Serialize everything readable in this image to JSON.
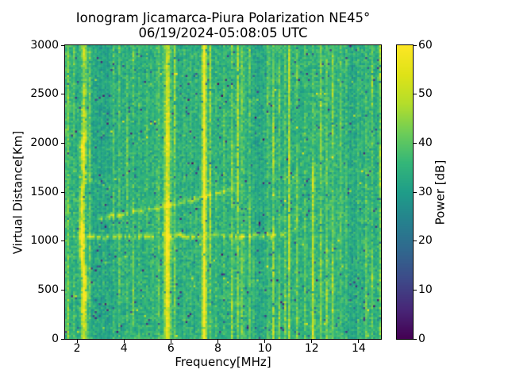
{
  "chart_data": {
    "type": "heatmap",
    "title": "Ionogram Jicamarca-Piura Polarization NE45°",
    "subtitle": "06/19/2024-05:08:05 UTC",
    "xlabel": "Frequency[MHz]",
    "ylabel": "Virtual Distance[Km]",
    "colorbar_label": "Power [dB]",
    "xlim": [
      1.49,
      14.95
    ],
    "ylim": [
      0,
      3000
    ],
    "clim": [
      0,
      60
    ],
    "xticks": [
      2,
      4,
      6,
      8,
      10,
      12,
      14
    ],
    "yticks": [
      0,
      500,
      1000,
      1500,
      2000,
      2500,
      3000
    ],
    "cticks": [
      0,
      10,
      20,
      30,
      40,
      50,
      60
    ],
    "colormap": "viridis",
    "colormap_stops": [
      [
        0.0,
        "#440154"
      ],
      [
        0.1,
        "#482878"
      ],
      [
        0.2,
        "#3e4a89"
      ],
      [
        0.3,
        "#31688e"
      ],
      [
        0.4,
        "#26828e"
      ],
      [
        0.5,
        "#1f9e89"
      ],
      [
        0.6,
        "#35b779"
      ],
      [
        0.7,
        "#6dcd59"
      ],
      [
        0.8,
        "#b4de2c"
      ],
      [
        0.9,
        "#dfe318"
      ],
      [
        1.0,
        "#fde725"
      ]
    ],
    "resolution": {
      "cols": 160,
      "rows": 148
    },
    "background_db": 34,
    "noise": {
      "spread_db": 7,
      "dark_speckle_prob": 0.018,
      "bright_speckle_prob": 0.003,
      "seed": 20240619
    },
    "background_shading": [
      {
        "f": 1.55,
        "w": 0.15,
        "db": 3
      },
      {
        "f": 3.05,
        "w": 0.5,
        "db": -2.5
      },
      {
        "f": 8.9,
        "w": 0.5,
        "db": 1.5
      },
      {
        "f": 9.65,
        "w": 0.3,
        "db": -2
      },
      {
        "f": 12.7,
        "w": 0.8,
        "db": 1.5
      },
      {
        "f": 13.65,
        "w": 0.25,
        "db": -2
      }
    ],
    "rfi_bands": [
      {
        "f": 1.62,
        "w": 0.05,
        "db": 6,
        "patchy": 0.6
      },
      {
        "f": 1.88,
        "w": 0.04,
        "db": 5,
        "patchy": 0.6
      },
      {
        "f": 2.27,
        "w": 0.11,
        "db": 21,
        "patchy": 0.7,
        "wobble": 0.12
      },
      {
        "f": 2.52,
        "w": 0.04,
        "db": 7,
        "patchy": 0.7
      },
      {
        "f": 3.1,
        "w": 0.03,
        "db": 4,
        "patchy": 0.6
      },
      {
        "f": 3.55,
        "w": 0.03,
        "db": 4,
        "patchy": 0.6
      },
      {
        "f": 3.8,
        "w": 0.03,
        "db": 5,
        "patchy": 0.6
      },
      {
        "f": 4.15,
        "w": 0.03,
        "db": 5,
        "patchy": 0.6
      },
      {
        "f": 4.4,
        "w": 0.03,
        "db": 6,
        "patchy": 0.6
      },
      {
        "f": 4.65,
        "w": 0.03,
        "db": 5,
        "patchy": 0.6
      },
      {
        "f": 4.95,
        "w": 0.04,
        "db": 7,
        "patchy": 0.5
      },
      {
        "f": 5.2,
        "w": 0.03,
        "db": 6,
        "patchy": 0.5
      },
      {
        "f": 5.45,
        "w": 0.04,
        "db": 9,
        "patchy": 0.5
      },
      {
        "f": 5.85,
        "w": 0.13,
        "db": 23,
        "patchy": 0.25
      },
      {
        "f": 6.15,
        "w": 0.04,
        "db": 10,
        "patchy": 0.4
      },
      {
        "f": 6.55,
        "w": 0.03,
        "db": 5,
        "patchy": 0.5
      },
      {
        "f": 6.85,
        "w": 0.03,
        "db": 6,
        "patchy": 0.5
      },
      {
        "f": 7.05,
        "w": 0.03,
        "db": 7,
        "patchy": 0.5
      },
      {
        "f": 7.42,
        "w": 0.09,
        "db": 26,
        "patchy": 0.08
      },
      {
        "f": 7.68,
        "w": 0.04,
        "db": 10,
        "patchy": 0.4
      },
      {
        "f": 7.95,
        "w": 0.03,
        "db": 6,
        "patchy": 0.5
      },
      {
        "f": 8.25,
        "w": 0.03,
        "db": 6,
        "patchy": 0.5
      },
      {
        "f": 8.6,
        "w": 0.04,
        "db": 8,
        "patchy": 0.6
      },
      {
        "f": 8.85,
        "w": 0.04,
        "db": 9,
        "patchy": 0.6
      },
      {
        "f": 9.05,
        "w": 0.04,
        "db": 9,
        "patchy": 0.6
      },
      {
        "f": 9.35,
        "w": 0.03,
        "db": 7,
        "patchy": 0.6
      },
      {
        "f": 9.5,
        "w": 0.03,
        "db": 6,
        "patchy": 0.6
      },
      {
        "f": 10.15,
        "w": 0.04,
        "db": 9,
        "patchy": 0.6
      },
      {
        "f": 10.35,
        "w": 0.05,
        "db": 12,
        "patchy": 0.5
      },
      {
        "f": 10.6,
        "w": 0.04,
        "db": 9,
        "patchy": 0.6
      },
      {
        "f": 10.85,
        "w": 0.04,
        "db": 8,
        "patchy": 0.5
      },
      {
        "f": 11.05,
        "w": 0.04,
        "db": 13,
        "patchy": 0.4
      },
      {
        "f": 11.35,
        "w": 0.04,
        "db": 9,
        "patchy": 0.6
      },
      {
        "f": 11.7,
        "w": 0.03,
        "db": 5,
        "patchy": 0.6
      },
      {
        "f": 12.05,
        "w": 0.06,
        "db": 11,
        "patchy": 0.7
      },
      {
        "f": 12.4,
        "w": 0.04,
        "db": 7,
        "patchy": 0.6
      },
      {
        "f": 12.65,
        "w": 0.04,
        "db": 8,
        "patchy": 0.6
      },
      {
        "f": 12.9,
        "w": 0.04,
        "db": 8,
        "patchy": 0.6
      },
      {
        "f": 13.25,
        "w": 0.03,
        "db": 7,
        "patchy": 0.5
      },
      {
        "f": 13.5,
        "w": 0.03,
        "db": 6,
        "patchy": 0.5
      },
      {
        "f": 14.0,
        "w": 0.03,
        "db": 5,
        "patchy": 0.6
      },
      {
        "f": 14.35,
        "w": 0.04,
        "db": 9,
        "patchy": 0.5
      },
      {
        "f": 14.55,
        "w": 0.04,
        "db": 9,
        "patchy": 0.5
      },
      {
        "f": 14.9,
        "w": 0.05,
        "db": 9,
        "patchy": 0.5
      }
    ],
    "echo_traces": [
      {
        "name": "horizontal-echo-1040km",
        "points": [
          [
            1.9,
            1040
          ],
          [
            10.7,
            1040
          ]
        ],
        "db": 13,
        "gap_prob": 0.25
      },
      {
        "name": "f-layer-trace",
        "points": [
          [
            2.9,
            1230
          ],
          [
            5.5,
            1330
          ],
          [
            7.6,
            1450
          ],
          [
            8.6,
            1520
          ]
        ],
        "db": 11,
        "gap_prob": 0.2
      },
      {
        "name": "faint-upper-trace",
        "points": [
          [
            2.15,
            1640
          ],
          [
            3.4,
            1550
          ]
        ],
        "db": 7,
        "gap_prob": 0.4
      }
    ]
  }
}
